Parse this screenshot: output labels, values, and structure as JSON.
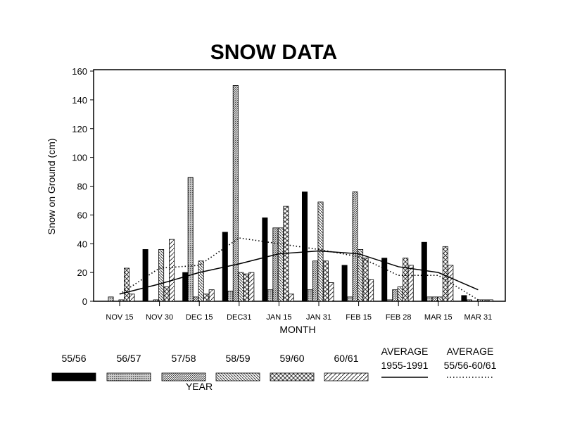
{
  "chart_data": {
    "type": "bar",
    "title": "SNOW DATA",
    "xlabel": "MONTH",
    "ylabel": "Snow on Ground (cm)",
    "legend_title": "YEAR",
    "ylim": [
      0,
      160
    ],
    "yticks": [
      "0",
      "20",
      "40",
      "60",
      "80",
      "100",
      "120",
      "140",
      "160"
    ],
    "categories": [
      "NOV 15",
      "NOV 30",
      "DEC 15",
      "DEC31",
      "JAN 15",
      "JAN 31",
      "FEB 15",
      "FEB 28",
      "MAR 15",
      "MAR 31"
    ],
    "series": [
      {
        "name": "55/56",
        "pattern": "solid",
        "values": [
          0,
          36,
          20,
          48,
          58,
          76,
          25,
          30,
          41,
          4
        ]
      },
      {
        "name": "56/57",
        "pattern": "dots",
        "values": [
          3,
          0,
          86,
          7,
          8,
          8,
          3,
          1,
          3,
          1
        ]
      },
      {
        "name": "57/58",
        "pattern": "diag",
        "values": [
          0,
          1,
          3,
          150,
          51,
          28,
          76,
          8,
          3,
          0
        ]
      },
      {
        "name": "58/59",
        "pattern": "backdiag",
        "values": [
          1,
          36,
          28,
          20,
          51,
          69,
          36,
          10,
          3,
          1
        ]
      },
      {
        "name": "59/60",
        "pattern": "cross",
        "values": [
          23,
          10,
          5,
          19,
          66,
          28,
          30,
          30,
          38,
          1
        ]
      },
      {
        "name": "60/61",
        "pattern": "wide",
        "values": [
          5,
          43,
          8,
          20,
          5,
          13,
          15,
          25,
          25,
          1
        ]
      }
    ],
    "lines": [
      {
        "name": "AVERAGE 1955-1991",
        "label1": "AVERAGE",
        "label2": "1955-1991",
        "style": "solid",
        "values": [
          5,
          12,
          20,
          26,
          33,
          35,
          33,
          24,
          20,
          8
        ]
      },
      {
        "name": "AVERAGE 55/56-60/61",
        "label1": "AVERAGE",
        "label2": "55/56-60/61",
        "style": "dotted",
        "values": [
          5,
          23,
          25,
          44,
          40,
          36,
          31,
          18,
          18,
          1
        ]
      }
    ]
  }
}
